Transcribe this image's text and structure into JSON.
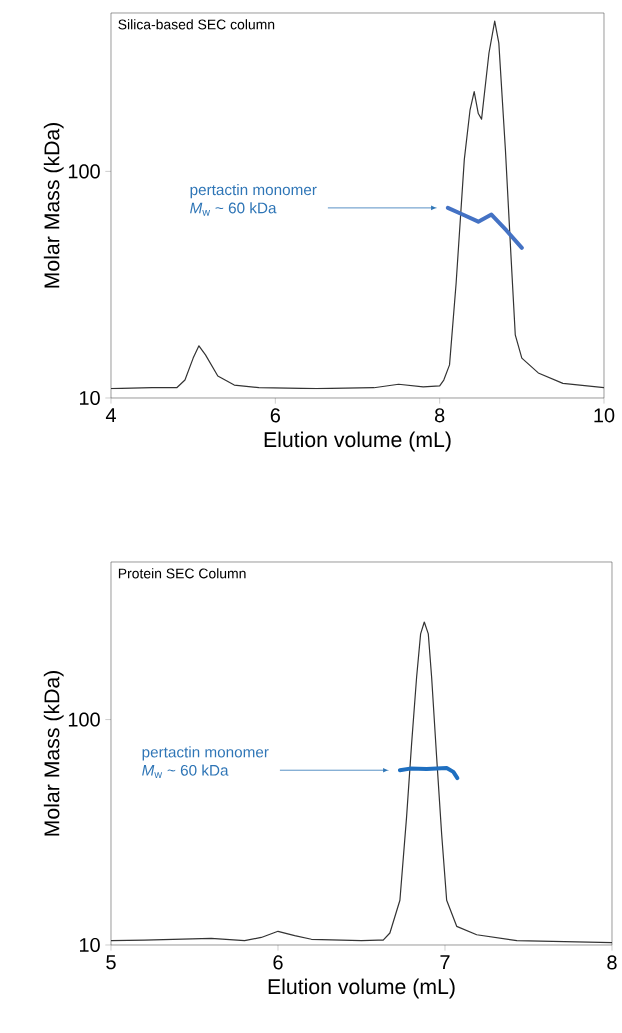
{
  "chart_data": [
    {
      "type": "line",
      "title": "Silica-based SEC column",
      "xlabel": "Elution volume (mL)",
      "ylabel": "Molar Mass (kDa)",
      "log": "y",
      "xlim": [
        4,
        10
      ],
      "ylim": [
        10,
        500
      ],
      "xticks": [
        4,
        6,
        8,
        10
      ],
      "yticks": [
        10,
        100
      ],
      "series": [
        {
          "color": "#333333",
          "x": [
            4,
            4.5,
            4.8,
            4.9,
            5.0,
            5.07,
            5.15,
            5.3,
            5.5,
            5.8,
            6.5,
            7.2,
            7.5,
            7.8,
            8.0,
            8.05,
            8.12,
            8.2,
            8.3,
            8.37,
            8.42,
            8.47,
            8.51,
            8.6,
            8.67,
            8.72,
            8.8,
            8.87,
            8.92,
            9.0,
            9.2,
            9.5,
            10
          ],
          "values": [
            11,
            11.1,
            11.1,
            12,
            15,
            17,
            15.5,
            12.5,
            11.4,
            11.1,
            11,
            11.1,
            11.5,
            11.2,
            11.3,
            12,
            14,
            32,
            113,
            187,
            225,
            180,
            170,
            333,
            460,
            368,
            125,
            41,
            19,
            15,
            12.9,
            11.6,
            11.1
          ]
        },
        {
          "color": "#4472c4",
          "x": [
            8.1,
            8.28,
            8.47,
            8.63,
            8.81,
            9.0
          ],
          "values": [
            69,
            64.5,
            60,
            64.5,
            55,
            46
          ]
        }
      ],
      "annotations": [
        "pertactin monomer",
        "*M*$_{w}$ ~ 60 kDa"
      ]
    },
    {
      "type": "line",
      "title": "Protein SEC Column",
      "xlabel": "Elution volume (mL)",
      "ylabel": "Molar Mass (kDa)",
      "log": "y",
      "xlim": [
        5,
        8
      ],
      "ylim": [
        10,
        500
      ],
      "xticks": [
        5,
        6,
        7,
        8
      ],
      "yticks": [
        10,
        100
      ],
      "series": [
        {
          "color": "#333333",
          "x": [
            5,
            5.2,
            5.6,
            5.8,
            5.9,
            6.0,
            6.1,
            6.2,
            6.5,
            6.6,
            6.63,
            6.67,
            6.73,
            6.77,
            6.8,
            6.83,
            6.854,
            6.876,
            6.9,
            6.92,
            6.95,
            6.98,
            7.01,
            7.07,
            7.19,
            7.43,
            8
          ],
          "values": [
            10.45,
            10.5,
            10.7,
            10.45,
            10.8,
            11.5,
            11.0,
            10.6,
            10.45,
            10.5,
            10.5,
            11.3,
            15.8,
            37,
            78,
            154,
            240,
            271,
            240,
            154,
            68,
            31,
            15.8,
            12.1,
            11.1,
            10.45,
            10.25
          ]
        },
        {
          "color": "#1f6fc0",
          "x": [
            6.73,
            6.79,
            6.89,
            7.01,
            7.05,
            7.074
          ],
          "values": [
            59.6,
            60.6,
            60.3,
            61,
            58.6,
            55
          ]
        }
      ],
      "annotations": [
        "pertactin monomer",
        "*M*$_{w}$ ~ 60 kDa"
      ]
    }
  ]
}
